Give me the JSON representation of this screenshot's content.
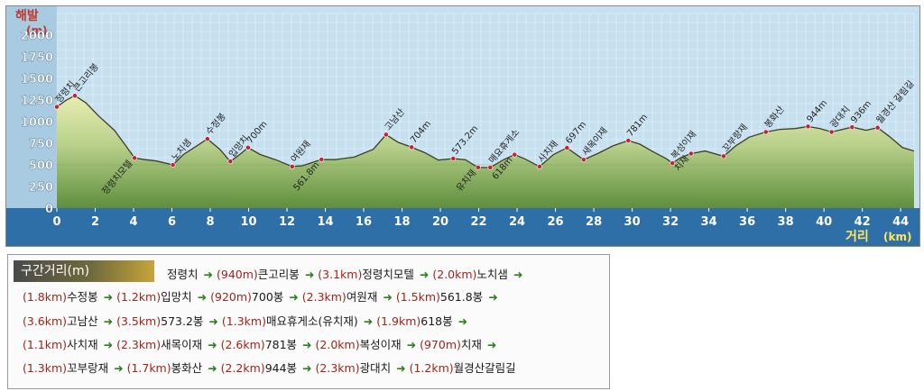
{
  "chart_data": {
    "type": "area",
    "ylabel": "해발",
    "yunit": "(m)",
    "xlabel": "거리",
    "xunit": "(km)",
    "ylim": [
      0,
      2250
    ],
    "xlim": [
      0,
      44.7
    ],
    "yticks": [
      0,
      250,
      500,
      750,
      1000,
      1250,
      1500,
      1750,
      2000
    ],
    "xticks": [
      0,
      2,
      4,
      6,
      8,
      10,
      12,
      14,
      16,
      18,
      20,
      22,
      24,
      26,
      28,
      30,
      32,
      34,
      36,
      38,
      40,
      42,
      44
    ],
    "profile": [
      [
        0,
        1170
      ],
      [
        0.5,
        1250
      ],
      [
        0.94,
        1300
      ],
      [
        1.5,
        1220
      ],
      [
        2.2,
        1060
      ],
      [
        3,
        900
      ],
      [
        3.6,
        720
      ],
      [
        4.05,
        580
      ],
      [
        4.6,
        560
      ],
      [
        5.2,
        545
      ],
      [
        6.05,
        500
      ],
      [
        6.6,
        620
      ],
      [
        7.3,
        720
      ],
      [
        7.85,
        800
      ],
      [
        8.5,
        680
      ],
      [
        9.05,
        540
      ],
      [
        9.6,
        630
      ],
      [
        9.97,
        700
      ],
      [
        10.6,
        620
      ],
      [
        11.4,
        560
      ],
      [
        12.27,
        480
      ],
      [
        12.8,
        490
      ],
      [
        13.8,
        562
      ],
      [
        14.5,
        560
      ],
      [
        15.5,
        590
      ],
      [
        16.5,
        680
      ],
      [
        17.17,
        850
      ],
      [
        17.8,
        760
      ],
      [
        18.5,
        704
      ],
      [
        19.2,
        640
      ],
      [
        19.9,
        555
      ],
      [
        20.67,
        573
      ],
      [
        21.3,
        560
      ],
      [
        21.97,
        470
      ],
      [
        22.6,
        470
      ],
      [
        23.3,
        560
      ],
      [
        23.87,
        618
      ],
      [
        24.4,
        570
      ],
      [
        25.17,
        480
      ],
      [
        25.9,
        620
      ],
      [
        26.6,
        697
      ],
      [
        27.47,
        560
      ],
      [
        28.2,
        630
      ],
      [
        29.0,
        720
      ],
      [
        29.8,
        781
      ],
      [
        30.4,
        740
      ],
      [
        31.1,
        650
      ],
      [
        31.8,
        570
      ],
      [
        32.1,
        520
      ],
      [
        32.5,
        580
      ],
      [
        33.07,
        630
      ],
      [
        33.8,
        660
      ],
      [
        34.77,
        600
      ],
      [
        35.4,
        720
      ],
      [
        36.1,
        820
      ],
      [
        36.97,
        880
      ],
      [
        37.7,
        910
      ],
      [
        38.5,
        920
      ],
      [
        39.17,
        944
      ],
      [
        39.8,
        920
      ],
      [
        40.4,
        880
      ],
      [
        41.47,
        936
      ],
      [
        42.2,
        900
      ],
      [
        42.8,
        930
      ],
      [
        43.4,
        830
      ],
      [
        44.1,
        700
      ],
      [
        44.7,
        660
      ]
    ],
    "peak_labels": [
      {
        "name": "정령치",
        "x": 0,
        "y": 1170
      },
      {
        "name": "큰고리봉",
        "x": 0.94,
        "y": 1300
      },
      {
        "name": "정령치모텔",
        "x": 4.05,
        "y": 580
      },
      {
        "name": "노치샘",
        "x": 6.05,
        "y": 500
      },
      {
        "name": "수정봉",
        "x": 7.85,
        "y": 800
      },
      {
        "name": "입망치",
        "x": 9.05,
        "y": 540
      },
      {
        "name": "700m",
        "x": 9.97,
        "y": 700
      },
      {
        "name": "여원재",
        "x": 12.27,
        "y": 480
      },
      {
        "name": "561.8m",
        "x": 13.8,
        "y": 562
      },
      {
        "name": "고남산",
        "x": 17.17,
        "y": 850
      },
      {
        "name": "704m",
        "x": 18.5,
        "y": 704
      },
      {
        "name": "573.2m",
        "x": 20.67,
        "y": 573
      },
      {
        "name": "유치재",
        "x": 21.97,
        "y": 470
      },
      {
        "name": "매요휴게소",
        "x": 22.6,
        "y": 470
      },
      {
        "name": "618m",
        "x": 23.87,
        "y": 618
      },
      {
        "name": "사치재",
        "x": 25.17,
        "y": 480
      },
      {
        "name": "697m",
        "x": 26.6,
        "y": 697
      },
      {
        "name": "새목이재",
        "x": 27.47,
        "y": 560
      },
      {
        "name": "781m",
        "x": 29.8,
        "y": 781
      },
      {
        "name": "복성이재",
        "x": 32.1,
        "y": 520
      },
      {
        "name": "치재",
        "x": 33.07,
        "y": 630
      },
      {
        "name": "꼬부랑재",
        "x": 34.77,
        "y": 600
      },
      {
        "name": "봉화산",
        "x": 36.97,
        "y": 880
      },
      {
        "name": "944m",
        "x": 39.17,
        "y": 944
      },
      {
        "name": "광대치",
        "x": 40.4,
        "y": 880
      },
      {
        "name": "936m",
        "x": 41.47,
        "y": 936
      },
      {
        "name": "월경산 갈림길",
        "x": 42.8,
        "y": 930
      }
    ]
  },
  "segments": {
    "title": "구간거리(m)",
    "lines": [
      [
        {
          "from": "정령치",
          "dist": "(940m)",
          "to": "큰고리봉"
        },
        {
          "dist": "(3.1km)",
          "to": "정령치모텔"
        },
        {
          "dist": "(2.0km)",
          "to": "노치샘"
        },
        {
          "dist": "",
          "to": ""
        }
      ],
      [
        {
          "dist": "(1.8km)",
          "to": "수정봉"
        },
        {
          "dist": "(1.2km)",
          "to": "입망치"
        },
        {
          "dist": "(920m)",
          "to": "700봉"
        },
        {
          "dist": "(2.3km)",
          "to": "여원재"
        },
        {
          "dist": "(1.5km)",
          "to": "561.8봉"
        },
        {
          "dist": "",
          "to": ""
        }
      ],
      [
        {
          "dist": "(3.6km)",
          "to": "고남산"
        },
        {
          "dist": "(3.5km)",
          "to": "573.2봉"
        },
        {
          "dist": "(1.3km)",
          "to": "매요휴게소(유치재)"
        },
        {
          "dist": "(1.9km)",
          "to": "618봉"
        },
        {
          "dist": "",
          "to": ""
        }
      ],
      [
        {
          "dist": "(1.1km)",
          "to": "사치재"
        },
        {
          "dist": "(2.3km)",
          "to": "새목이재"
        },
        {
          "dist": "(2.6km)",
          "to": "781봉"
        },
        {
          "dist": "(2.0km)",
          "to": "복성이재"
        },
        {
          "dist": "(970m)",
          "to": "치재"
        },
        {
          "dist": "",
          "to": ""
        }
      ],
      [
        {
          "dist": "(1.3km)",
          "to": "꼬부랑재"
        },
        {
          "dist": "(1.7km)",
          "to": "봉화산"
        },
        {
          "dist": "(2.2km)",
          "to": "944봉"
        },
        {
          "dist": "(2.3km)",
          "to": "광대치"
        },
        {
          "dist": "(1.2km)",
          "to": "월경산갈림길"
        }
      ]
    ]
  },
  "colors": {
    "sky": "#c6e0f0",
    "sky_grid": "#e9f4fb",
    "terrain_fill": "#b7cf8a",
    "terrain_dark": "#5f8f3c",
    "terrain_line": "#3d3d2a",
    "axis_label": "#c0392b",
    "tick_text": "#ffffff",
    "x_axis_label": "#ffe65a",
    "marker": "#c4223a",
    "arrow": "#2e7d1e",
    "distance": "#a0241a"
  }
}
